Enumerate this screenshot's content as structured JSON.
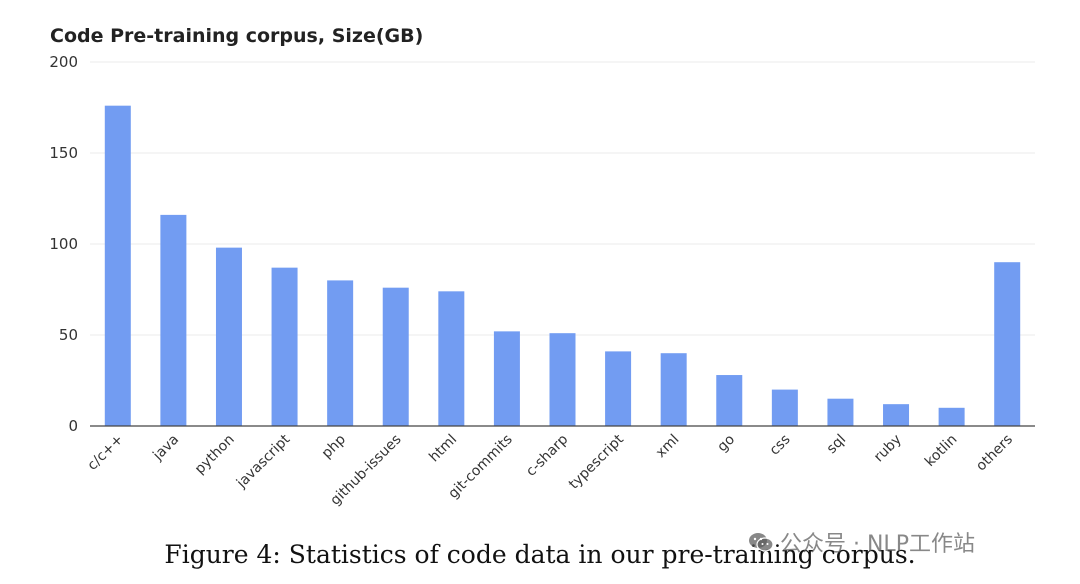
{
  "chart_data": {
    "type": "bar",
    "title": "Code Pre-training corpus, Size(GB)",
    "categories": [
      "c/c++",
      "java",
      "python",
      "javascript",
      "php",
      "github-issues",
      "html",
      "git-commits",
      "c-sharp",
      "typescript",
      "xml",
      "go",
      "css",
      "sql",
      "ruby",
      "kotlin",
      "others"
    ],
    "values": [
      176,
      116,
      98,
      87,
      80,
      76,
      74,
      52,
      51,
      41,
      40,
      28,
      20,
      15,
      12,
      10,
      90
    ],
    "yticks": [
      0,
      50,
      100,
      150,
      200
    ],
    "ylim": [
      0,
      200
    ],
    "grid": true,
    "bar_color": "#729cf2",
    "grid_color": "#ebebeb",
    "axis_color": "#444444"
  },
  "caption": "Figure 4: Statistics of code data in our pre-training corpus.",
  "watermark": {
    "text": "公众号 · NLP工作站",
    "icon": "wechat-icon"
  }
}
